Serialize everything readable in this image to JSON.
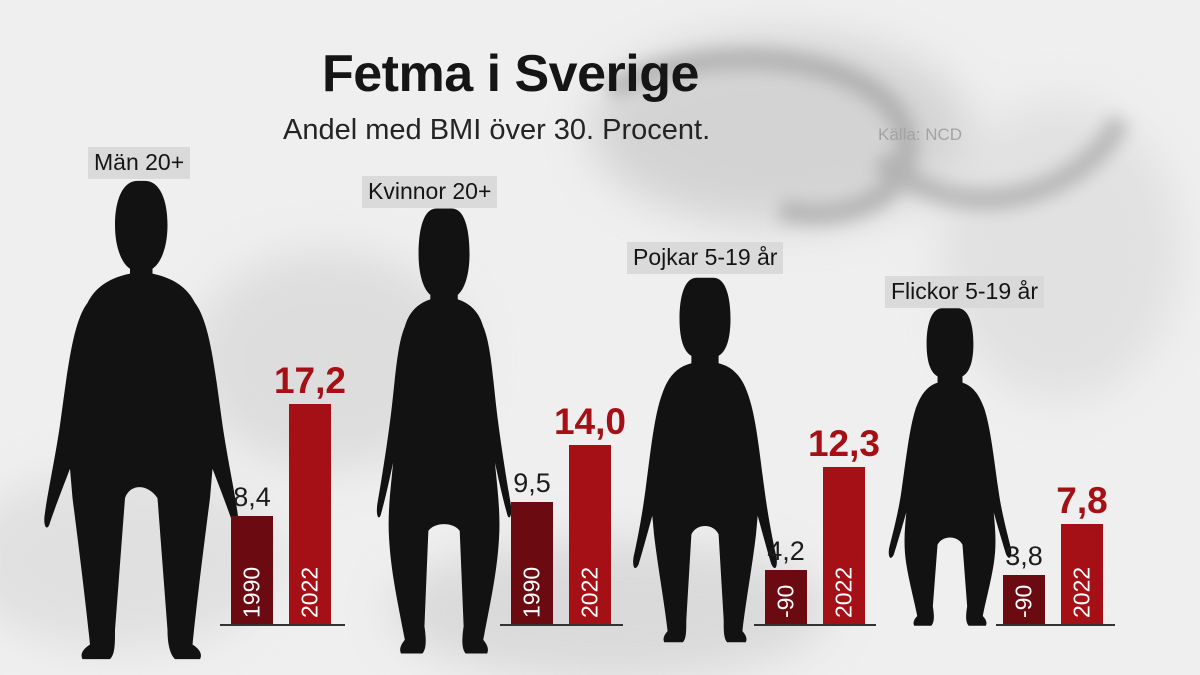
{
  "title": "Fetma i Sverige",
  "subtitle": "Andel med BMI över 30. Procent.",
  "source": "Källa: NCD",
  "colors": {
    "bar_1990": "#6b0a10",
    "bar_2022": "#a51017",
    "silhouette": "#121212"
  },
  "chart_data": {
    "type": "bar",
    "title": "Fetma i Sverige",
    "subtitle": "Andel med BMI över 30. Procent.",
    "xlabel": "",
    "ylabel": "",
    "groups": [
      {
        "label": "Män 20+",
        "icon": "man-silhouette-icon",
        "bars": [
          {
            "year_label": "1990",
            "value": 8.4,
            "display": "8,4"
          },
          {
            "year_label": "2022",
            "value": 17.2,
            "display": "17,2"
          }
        ]
      },
      {
        "label": "Kvinnor 20+",
        "icon": "woman-silhouette-icon",
        "bars": [
          {
            "year_label": "1990",
            "value": 9.5,
            "display": "9,5"
          },
          {
            "year_label": "2022",
            "value": 14.0,
            "display": "14,0"
          }
        ]
      },
      {
        "label": "Pojkar 5-19 år",
        "icon": "boy-silhouette-icon",
        "bars": [
          {
            "year_label": "-90",
            "value": 4.2,
            "display": "4,2"
          },
          {
            "year_label": "2022",
            "value": 12.3,
            "display": "12,3"
          }
        ]
      },
      {
        "label": "Flickor 5-19 år",
        "icon": "girl-silhouette-icon",
        "bars": [
          {
            "year_label": "-90",
            "value": 3.8,
            "display": "3,8"
          },
          {
            "year_label": "2022",
            "value": 7.8,
            "display": "7,8"
          }
        ]
      }
    ]
  }
}
